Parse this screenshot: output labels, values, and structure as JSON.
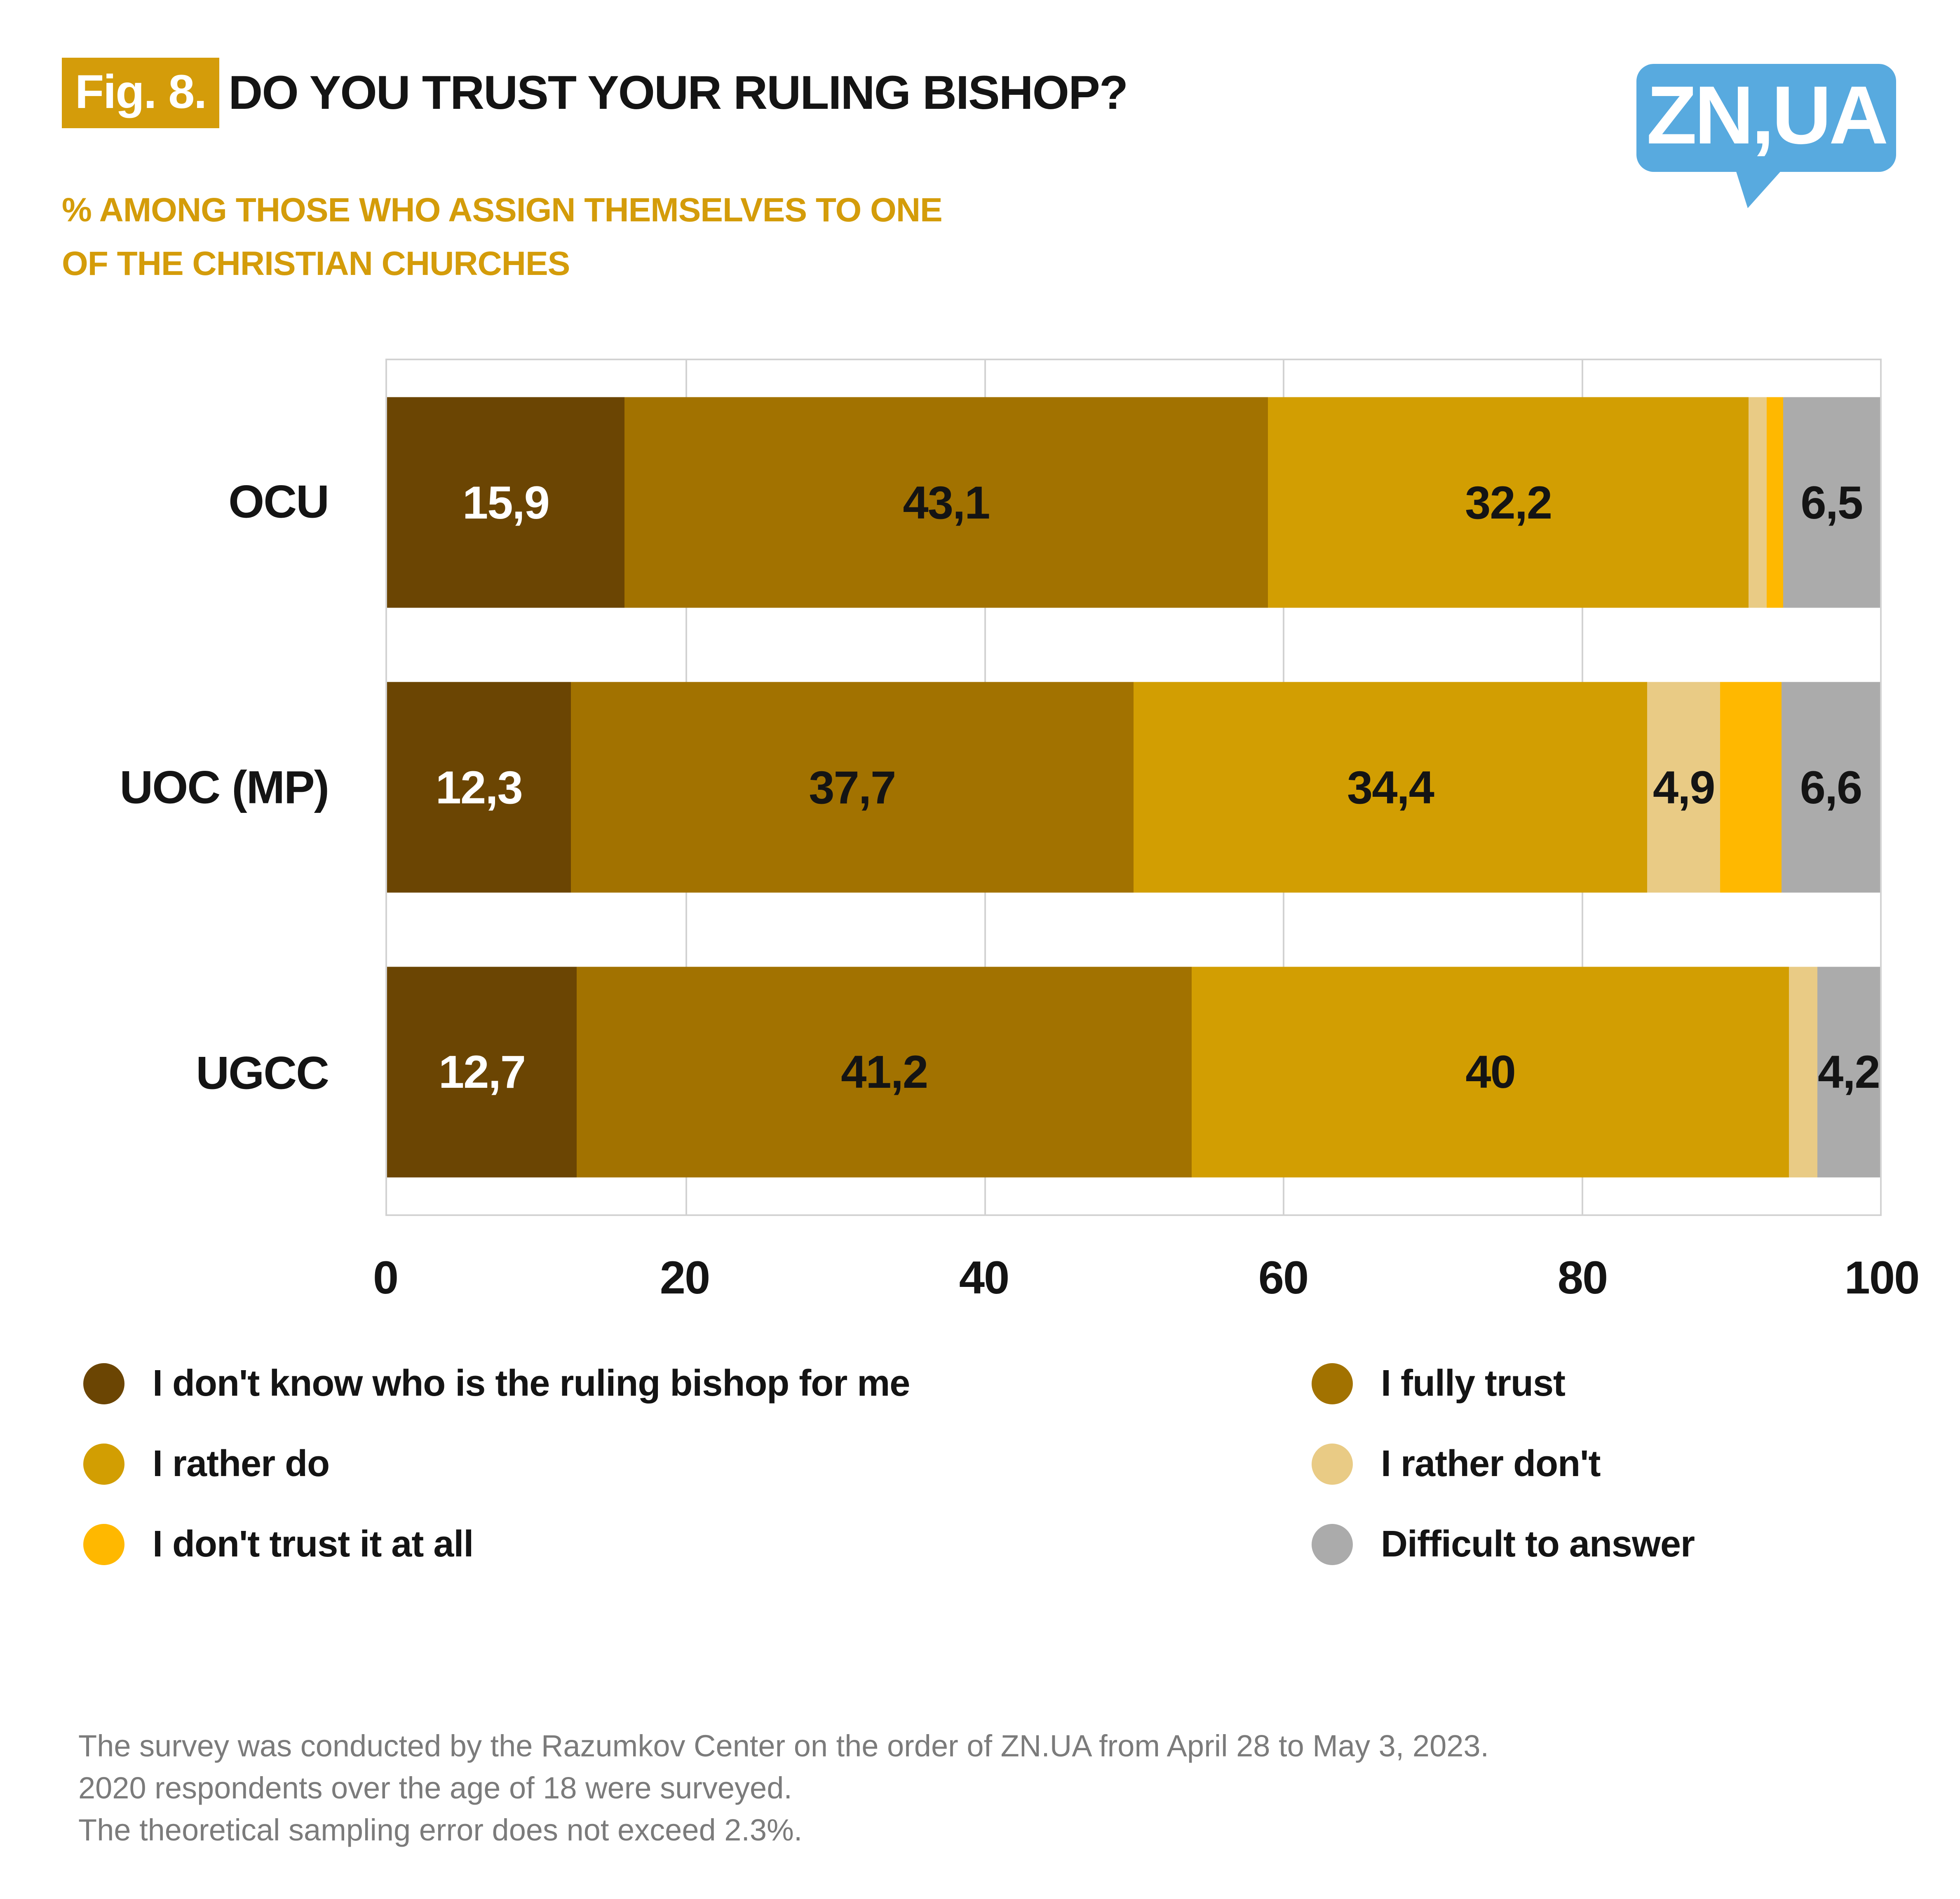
{
  "header": {
    "badge": "Fig. 8.",
    "title": "DO YOU TRUST YOUR RULING BISHOP?",
    "subtitle_line1": "% AMONG THOSE WHO ASSIGN THEMSELVES TO ONE",
    "subtitle_line2": "OF THE CHRISTIAN CHURCHES",
    "badge_color": "#D49C0A",
    "subtitle_color": "#D49C0A"
  },
  "logo": {
    "text": "ZN,UA",
    "color": "#58AADF"
  },
  "chart_data": {
    "type": "bar",
    "orientation": "horizontal",
    "stacked": true,
    "categories": [
      "OCU",
      "UOC (MP)",
      "UGCC"
    ],
    "series": [
      {
        "name": "I don't know who is the ruling bishop for me",
        "color": "#6B4503",
        "values": [
          15.9,
          12.3,
          12.7
        ],
        "labels": [
          "15,9",
          "12,3",
          "12,7"
        ],
        "label_color": "#ffffff"
      },
      {
        "name": "I fully trust",
        "color": "#A27200",
        "values": [
          43.1,
          37.7,
          41.2
        ],
        "labels": [
          "43,1",
          "37,7",
          "41,2"
        ],
        "label_color": "#141414"
      },
      {
        "name": "I rather do",
        "color": "#D29E02",
        "values": [
          32.2,
          34.4,
          40
        ],
        "labels": [
          "32,2",
          "34,4",
          "40"
        ],
        "label_color": "#141414"
      },
      {
        "name": "I rather don't",
        "color": "#E9CB85",
        "values": [
          1.2,
          4.9,
          1.9
        ],
        "labels": [
          "",
          "4,9",
          ""
        ],
        "label_color": "#141414"
      },
      {
        "name": "I don't trust it at all",
        "color": "#FFB800",
        "values": [
          1.1,
          4.1,
          0
        ],
        "labels": [
          "",
          "",
          ""
        ],
        "label_color": "#141414"
      },
      {
        "name": "Difficult to answer",
        "color": "#ABABAB",
        "values": [
          6.5,
          6.6,
          4.2
        ],
        "labels": [
          "6,5",
          "6,6",
          "4,2"
        ],
        "label_color": "#141414"
      }
    ],
    "x_ticks": [
      0,
      20,
      40,
      60,
      80,
      100
    ],
    "xlim": [
      0,
      100
    ],
    "grid": true,
    "legend_position": "bottom"
  },
  "footnote": {
    "lines": [
      "The survey was conducted by the Razumkov Center on the order of ZN.UA from April 28 to May 3, 2023.",
      "2020 respondents over the age of 18 were surveyed.",
      "The theoretical sampling error does not exceed 2.3%."
    ]
  }
}
